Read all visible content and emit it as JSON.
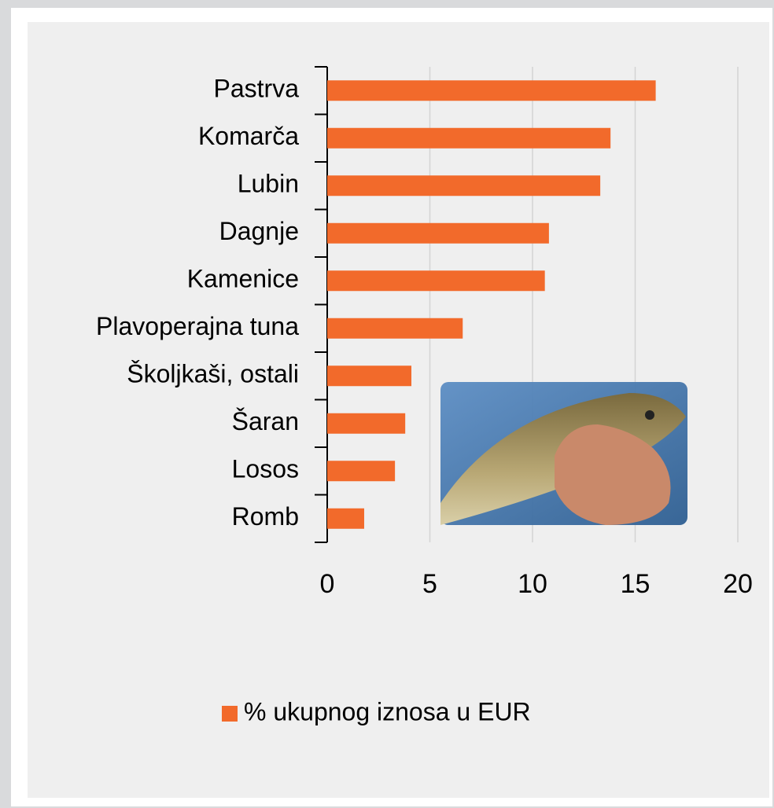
{
  "chart_data": {
    "type": "bar",
    "orientation": "horizontal",
    "categories": [
      "Pastrva",
      "Komarča",
      "Lubin",
      "Dagnje",
      "Kamenice",
      "Plavoperajna tuna",
      "Školjkaši, ostali",
      "Šaran",
      "Losos",
      "Romb"
    ],
    "series": [
      {
        "name": "% ukupnog iznosa u EUR",
        "color": "#f26a2b",
        "values": [
          16,
          13.8,
          13.3,
          10.8,
          10.6,
          6.6,
          4.1,
          3.8,
          3.3,
          1.8
        ]
      }
    ],
    "xlim": [
      0,
      20
    ],
    "xticks": [
      0,
      5,
      10,
      15,
      20
    ],
    "grid": true,
    "legend": "bottom"
  }
}
